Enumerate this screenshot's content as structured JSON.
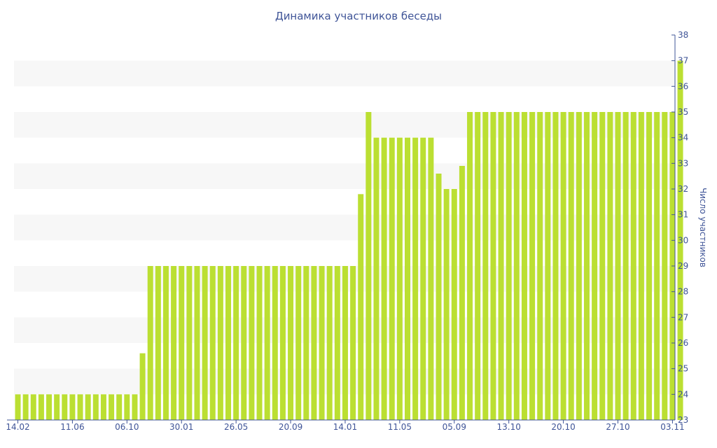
{
  "chart_data": {
    "type": "bar",
    "title": "Динамика участников беседы",
    "xlabel": "",
    "ylabel": "Число участников",
    "y_axis_side": "right",
    "ylim": [
      23,
      38
    ],
    "yticks": [
      23,
      24,
      25,
      26,
      27,
      28,
      29,
      30,
      31,
      32,
      33,
      34,
      35,
      36,
      37,
      38
    ],
    "x_tick_labels": [
      "14.02",
      "11.06",
      "06.10",
      "30.01",
      "26.05",
      "20.09",
      "14.01",
      "11.05",
      "05.09",
      "13.10",
      "20.10",
      "27.10",
      "03.11"
    ],
    "x_tick_bar_index": [
      0,
      7,
      14,
      21,
      28,
      35,
      42,
      49,
      56,
      63,
      70,
      77,
      84
    ],
    "grid": "alternating horizontal bands",
    "legend": "none",
    "colors": {
      "bar": "#bbdf32",
      "band": "#f7f7f7",
      "text": "#3f5497",
      "axis": "#3f5497"
    },
    "values": [
      24,
      24,
      24,
      24,
      24,
      24,
      24,
      24,
      24,
      24,
      24,
      24,
      24,
      24,
      24,
      24,
      25.6,
      29,
      29,
      29,
      29,
      29,
      29,
      29,
      29,
      29,
      29,
      29,
      29,
      29,
      29,
      29,
      29,
      29,
      29,
      29,
      29,
      29,
      29,
      29,
      29,
      29,
      29,
      29,
      31.8,
      35,
      34,
      34,
      34,
      34,
      34,
      34,
      34,
      34,
      32.6,
      32,
      32,
      32.9,
      35,
      35,
      35,
      35,
      35,
      35,
      35,
      35,
      35,
      35,
      35,
      35,
      35,
      35,
      35,
      35,
      35,
      35,
      35,
      35,
      35,
      35,
      35,
      35,
      35,
      35,
      35,
      37
    ]
  }
}
